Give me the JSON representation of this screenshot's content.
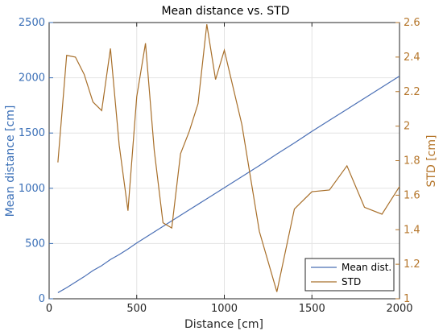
{
  "chart_data": {
    "type": "line",
    "title": "Mean distance vs. STD",
    "xlabel": "Distance [cm]",
    "ylabel_left": "Mean distance [cm]",
    "ylabel_right": "STD [cm]",
    "xlim": [
      0,
      2000
    ],
    "ylim_left": [
      0,
      2500
    ],
    "ylim_right": [
      1,
      2.6
    ],
    "x_ticks": [
      0,
      500,
      1000,
      1500,
      2000
    ],
    "y_ticks_left": [
      0,
      500,
      1000,
      1500,
      2000,
      2500
    ],
    "y_ticks_right": [
      1,
      1.2,
      1.4,
      1.6,
      1.8,
      2,
      2.2,
      2.4,
      2.6
    ],
    "grid": true,
    "legend_position": "bottom-right",
    "colors": {
      "left_axis": "#3a6fb7",
      "right_axis": "#b5762b"
    },
    "series": [
      {
        "name": "Mean dist.",
        "axis": "left",
        "color": "#4a6fb5",
        "x": [
          50,
          100,
          150,
          200,
          250,
          300,
          350,
          400,
          450,
          500,
          550,
          600,
          650,
          700,
          750,
          800,
          850,
          900,
          950,
          1000,
          1100,
          1200,
          1300,
          1400,
          1500,
          1600,
          1700,
          1800,
          1900,
          2000
        ],
        "values": [
          55,
          100,
          150,
          200,
          255,
          300,
          355,
          400,
          450,
          505,
          555,
          605,
          655,
          705,
          755,
          805,
          855,
          905,
          955,
          1005,
          1105,
          1205,
          1310,
          1410,
          1515,
          1615,
          1715,
          1815,
          1915,
          2015
        ]
      },
      {
        "name": "STD",
        "axis": "right",
        "color": "#a86f2a",
        "x": [
          50,
          100,
          150,
          200,
          250,
          300,
          350,
          400,
          450,
          500,
          550,
          600,
          650,
          700,
          750,
          800,
          850,
          900,
          950,
          1000,
          1100,
          1200,
          1300,
          1400,
          1500,
          1600,
          1700,
          1800,
          1900,
          2000
        ],
        "values": [
          1.79,
          2.41,
          2.4,
          2.3,
          2.14,
          2.09,
          2.45,
          1.89,
          1.51,
          2.17,
          2.48,
          1.86,
          1.44,
          1.41,
          1.84,
          1.97,
          2.13,
          2.59,
          2.27,
          2.44,
          2.01,
          1.39,
          1.04,
          1.52,
          1.62,
          1.63,
          1.77,
          1.53,
          1.49,
          1.65
        ]
      }
    ]
  }
}
